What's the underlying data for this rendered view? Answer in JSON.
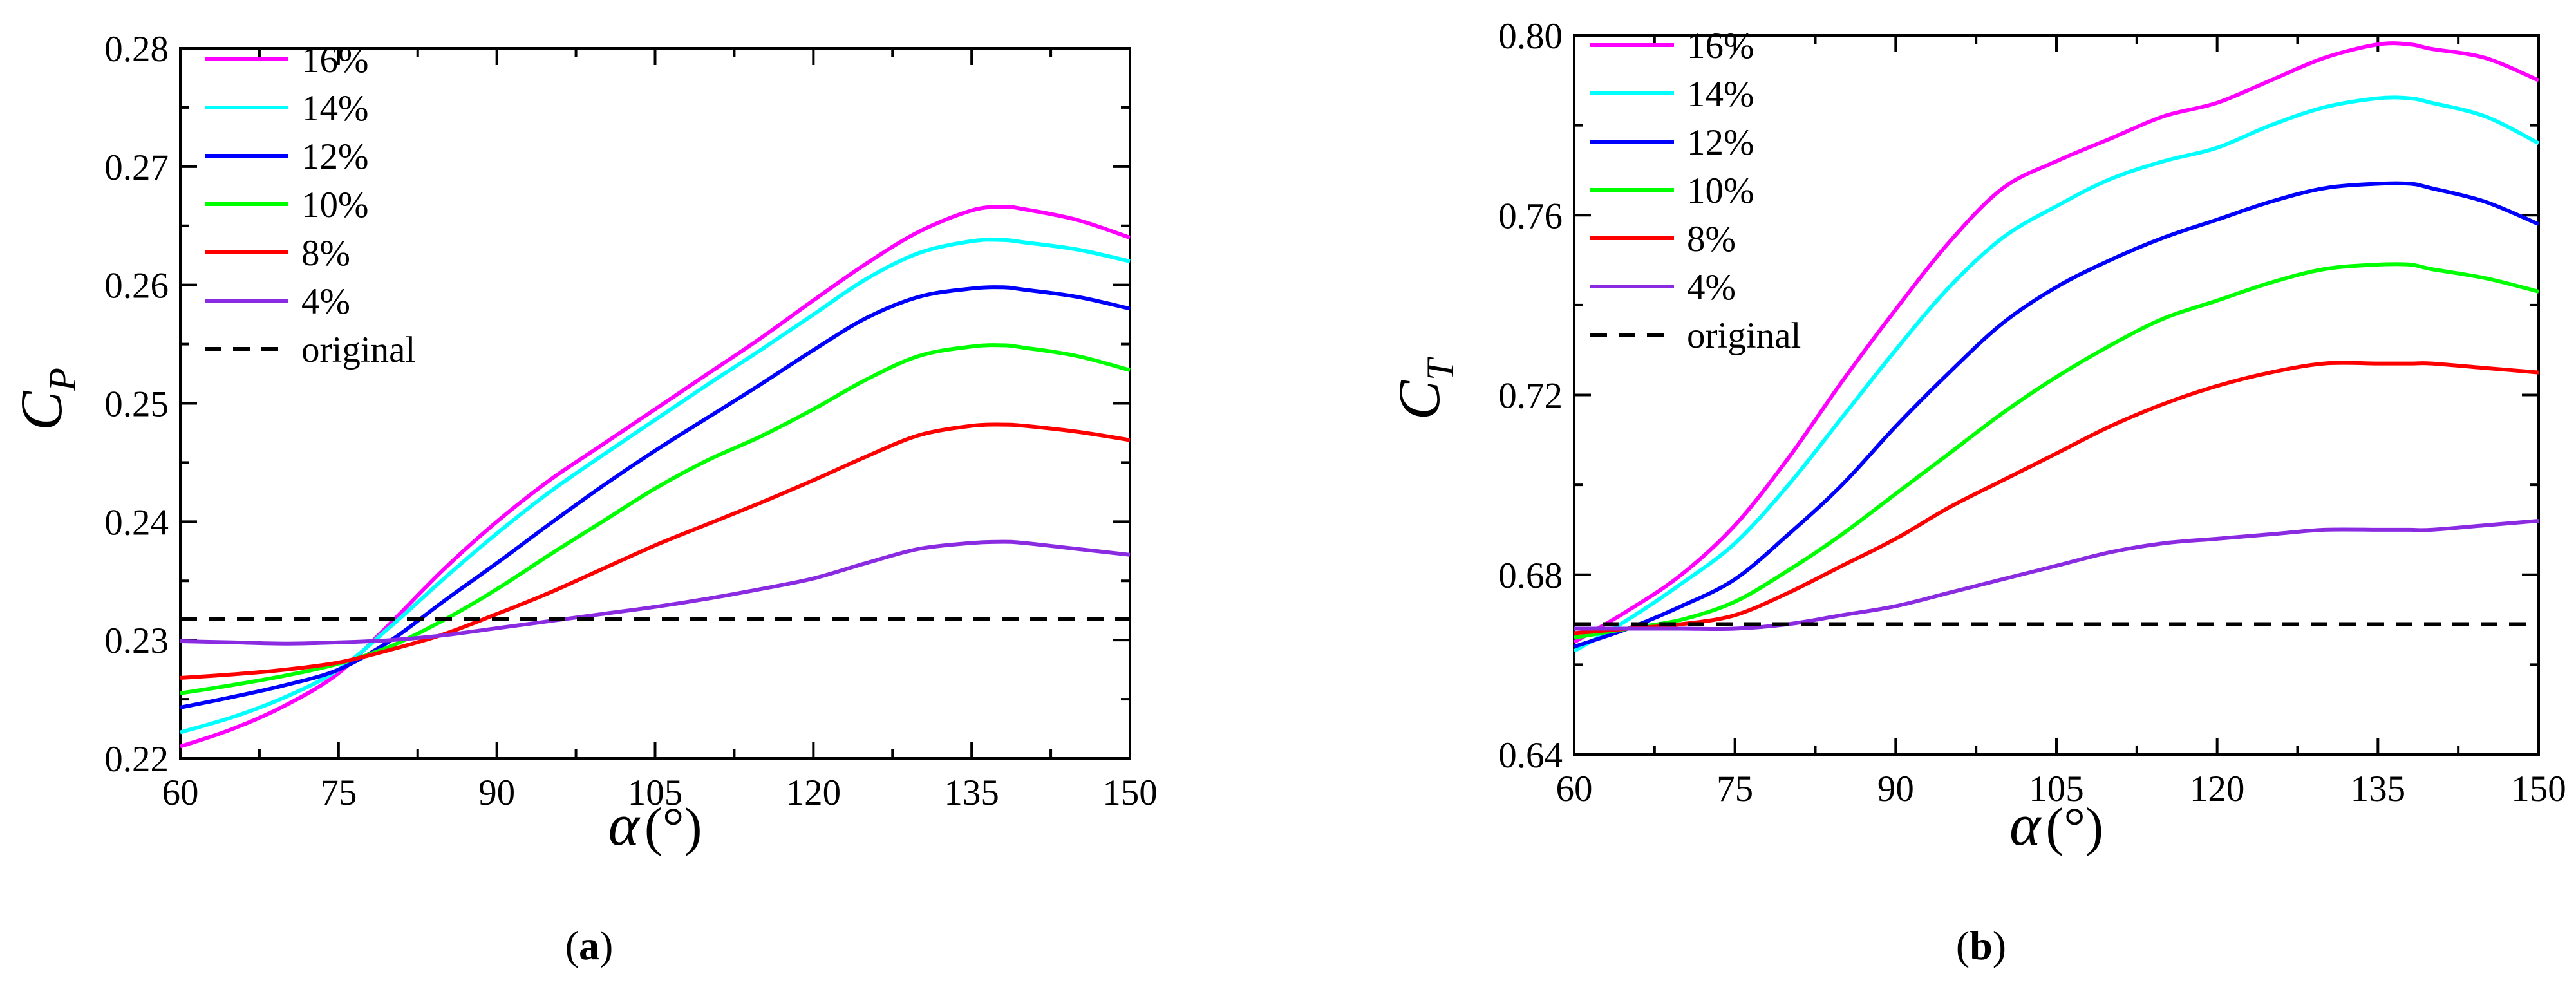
{
  "chart_data": [
    {
      "type": "line",
      "panel_label": "(a)",
      "panel_letter": "a",
      "ylabel": "C",
      "ylabel_sub": "P",
      "xlabel": "α",
      "xlabel_unit": "(°)",
      "xlim": [
        60,
        150
      ],
      "ylim": [
        0.22,
        0.28
      ],
      "xticks": [
        60,
        75,
        90,
        105,
        120,
        135,
        150
      ],
      "xtick_labels": [
        "60",
        "75",
        "90",
        "105",
        "120",
        "135",
        "150"
      ],
      "yticks": [
        0.22,
        0.23,
        0.24,
        0.25,
        0.26,
        0.27,
        0.28
      ],
      "ytick_labels": [
        "0.22",
        "0.23",
        "0.24",
        "0.25",
        "0.26",
        "0.27",
        "0.28"
      ],
      "legend_position": "top-left",
      "series": [
        {
          "name": "16%",
          "color": "#ff00ff",
          "dash": false,
          "x": [
            60,
            65,
            70,
            75,
            80,
            85,
            90,
            95,
            100,
            105,
            110,
            115,
            120,
            125,
            130,
            135,
            138,
            140,
            145,
            150
          ],
          "y": [
            0.221,
            0.2225,
            0.2245,
            0.2272,
            0.2315,
            0.236,
            0.24,
            0.2435,
            0.2465,
            0.2495,
            0.2525,
            0.2555,
            0.2587,
            0.2618,
            0.2645,
            0.2663,
            0.2666,
            0.2664,
            0.2655,
            0.264
          ]
        },
        {
          "name": "14%",
          "color": "#00ffff",
          "dash": false,
          "x": [
            60,
            65,
            70,
            75,
            80,
            85,
            90,
            95,
            100,
            105,
            110,
            115,
            120,
            125,
            130,
            135,
            138,
            140,
            145,
            150
          ],
          "y": [
            0.2222,
            0.2235,
            0.2252,
            0.2275,
            0.2312,
            0.2352,
            0.239,
            0.2425,
            0.2456,
            0.2486,
            0.2516,
            0.2545,
            0.2575,
            0.2605,
            0.2627,
            0.2637,
            0.2638,
            0.2636,
            0.263,
            0.262
          ]
        },
        {
          "name": "12%",
          "color": "#0000ff",
          "dash": false,
          "x": [
            60,
            65,
            70,
            75,
            80,
            85,
            90,
            95,
            100,
            105,
            110,
            115,
            120,
            125,
            130,
            135,
            138,
            140,
            145,
            150
          ],
          "y": [
            0.2243,
            0.2252,
            0.2262,
            0.2275,
            0.23,
            0.2333,
            0.2365,
            0.2398,
            0.243,
            0.246,
            0.2488,
            0.2516,
            0.2545,
            0.2572,
            0.259,
            0.2597,
            0.2598,
            0.2596,
            0.259,
            0.258
          ]
        },
        {
          "name": "10%",
          "color": "#00ff00",
          "dash": false,
          "x": [
            60,
            65,
            70,
            75,
            80,
            85,
            90,
            95,
            100,
            105,
            110,
            115,
            120,
            125,
            130,
            135,
            138,
            140,
            145,
            150
          ],
          "y": [
            0.2255,
            0.2262,
            0.227,
            0.228,
            0.2295,
            0.2317,
            0.2343,
            0.2372,
            0.24,
            0.2428,
            0.2452,
            0.2472,
            0.2495,
            0.252,
            0.254,
            0.2548,
            0.2549,
            0.2547,
            0.254,
            0.2528
          ]
        },
        {
          "name": "8%",
          "color": "#ff0000",
          "dash": false,
          "x": [
            60,
            65,
            70,
            75,
            80,
            85,
            90,
            95,
            100,
            105,
            110,
            115,
            120,
            125,
            130,
            135,
            138,
            140,
            145,
            150
          ],
          "y": [
            0.2268,
            0.2271,
            0.2275,
            0.2281,
            0.2292,
            0.2305,
            0.2322,
            0.234,
            0.236,
            0.238,
            0.2398,
            0.2416,
            0.2435,
            0.2455,
            0.2473,
            0.2481,
            0.2482,
            0.2481,
            0.2476,
            0.2469
          ]
        },
        {
          "name": "4%",
          "color": "#8a2be2",
          "dash": false,
          "x": [
            60,
            65,
            70,
            75,
            80,
            85,
            90,
            95,
            100,
            105,
            110,
            115,
            120,
            125,
            130,
            135,
            138,
            140,
            145,
            150
          ],
          "y": [
            0.2299,
            0.2298,
            0.2297,
            0.2298,
            0.23,
            0.2304,
            0.231,
            0.2316,
            0.2322,
            0.2328,
            0.2335,
            0.2343,
            0.2352,
            0.2365,
            0.2377,
            0.2382,
            0.2383,
            0.2382,
            0.2377,
            0.2372
          ]
        },
        {
          "name": "original",
          "color": "#000000",
          "dash": true,
          "x": [
            60,
            150
          ],
          "y": [
            0.2318,
            0.2318
          ]
        }
      ]
    },
    {
      "type": "line",
      "panel_label": "(b)",
      "panel_letter": "b",
      "ylabel": "C",
      "ylabel_sub": "T",
      "xlabel": "α",
      "xlabel_unit": "(°)",
      "xlim": [
        60,
        150
      ],
      "ylim": [
        0.64,
        0.8
      ],
      "xticks": [
        60,
        75,
        90,
        105,
        120,
        135,
        150
      ],
      "xtick_labels": [
        "60",
        "75",
        "90",
        "105",
        "120",
        "135",
        "150"
      ],
      "yticks": [
        0.64,
        0.68,
        0.72,
        0.76,
        0.8
      ],
      "ytick_labels": [
        "0.64",
        "0.68",
        "0.72",
        "0.76",
        "0.80"
      ],
      "legend_position": "top-left",
      "series": [
        {
          "name": "16%",
          "color": "#ff00ff",
          "dash": false,
          "x": [
            60,
            65,
            70,
            75,
            80,
            85,
            90,
            95,
            100,
            105,
            110,
            115,
            120,
            125,
            130,
            135,
            138,
            140,
            145,
            150
          ],
          "y": [
            0.665,
            0.672,
            0.68,
            0.691,
            0.706,
            0.723,
            0.739,
            0.754,
            0.766,
            0.772,
            0.777,
            0.782,
            0.785,
            0.79,
            0.795,
            0.798,
            0.798,
            0.797,
            0.795,
            0.79
          ]
        },
        {
          "name": "14%",
          "color": "#00ffff",
          "dash": false,
          "x": [
            60,
            65,
            70,
            75,
            80,
            85,
            90,
            95,
            100,
            105,
            110,
            115,
            120,
            125,
            130,
            135,
            138,
            140,
            145,
            150
          ],
          "y": [
            0.663,
            0.67,
            0.678,
            0.687,
            0.7,
            0.715,
            0.73,
            0.744,
            0.755,
            0.762,
            0.768,
            0.772,
            0.775,
            0.78,
            0.784,
            0.786,
            0.786,
            0.785,
            0.782,
            0.776
          ]
        },
        {
          "name": "12%",
          "color": "#0000ff",
          "dash": false,
          "x": [
            60,
            65,
            70,
            75,
            80,
            85,
            90,
            95,
            100,
            105,
            110,
            115,
            120,
            125,
            130,
            135,
            138,
            140,
            145,
            150
          ],
          "y": [
            0.664,
            0.668,
            0.673,
            0.679,
            0.689,
            0.7,
            0.713,
            0.725,
            0.736,
            0.744,
            0.75,
            0.755,
            0.759,
            0.763,
            0.766,
            0.767,
            0.767,
            0.766,
            0.763,
            0.758
          ]
        },
        {
          "name": "10%",
          "color": "#00ff00",
          "dash": false,
          "x": [
            60,
            65,
            70,
            75,
            80,
            85,
            90,
            95,
            100,
            105,
            110,
            115,
            120,
            125,
            130,
            135,
            138,
            140,
            145,
            150
          ],
          "y": [
            0.666,
            0.668,
            0.67,
            0.674,
            0.681,
            0.689,
            0.698,
            0.707,
            0.716,
            0.724,
            0.731,
            0.737,
            0.741,
            0.745,
            0.748,
            0.749,
            0.749,
            0.748,
            0.746,
            0.743
          ]
        },
        {
          "name": "8%",
          "color": "#ff0000",
          "dash": false,
          "x": [
            60,
            65,
            70,
            75,
            80,
            85,
            90,
            95,
            100,
            105,
            110,
            115,
            120,
            125,
            130,
            135,
            138,
            140,
            145,
            150
          ],
          "y": [
            0.667,
            0.668,
            0.669,
            0.671,
            0.676,
            0.682,
            0.688,
            0.695,
            0.701,
            0.707,
            0.713,
            0.718,
            0.722,
            0.725,
            0.727,
            0.727,
            0.727,
            0.727,
            0.726,
            0.725
          ]
        },
        {
          "name": "4%",
          "color": "#8a2be2",
          "dash": false,
          "x": [
            60,
            65,
            70,
            75,
            80,
            85,
            90,
            95,
            100,
            105,
            110,
            115,
            120,
            125,
            130,
            135,
            138,
            140,
            145,
            150
          ],
          "y": [
            0.668,
            0.668,
            0.668,
            0.668,
            0.669,
            0.671,
            0.673,
            0.676,
            0.679,
            0.682,
            0.685,
            0.687,
            0.688,
            0.689,
            0.69,
            0.69,
            0.69,
            0.69,
            0.691,
            0.692
          ]
        },
        {
          "name": "original",
          "color": "#000000",
          "dash": true,
          "x": [
            60,
            150
          ],
          "y": [
            0.669,
            0.669
          ]
        }
      ]
    }
  ]
}
